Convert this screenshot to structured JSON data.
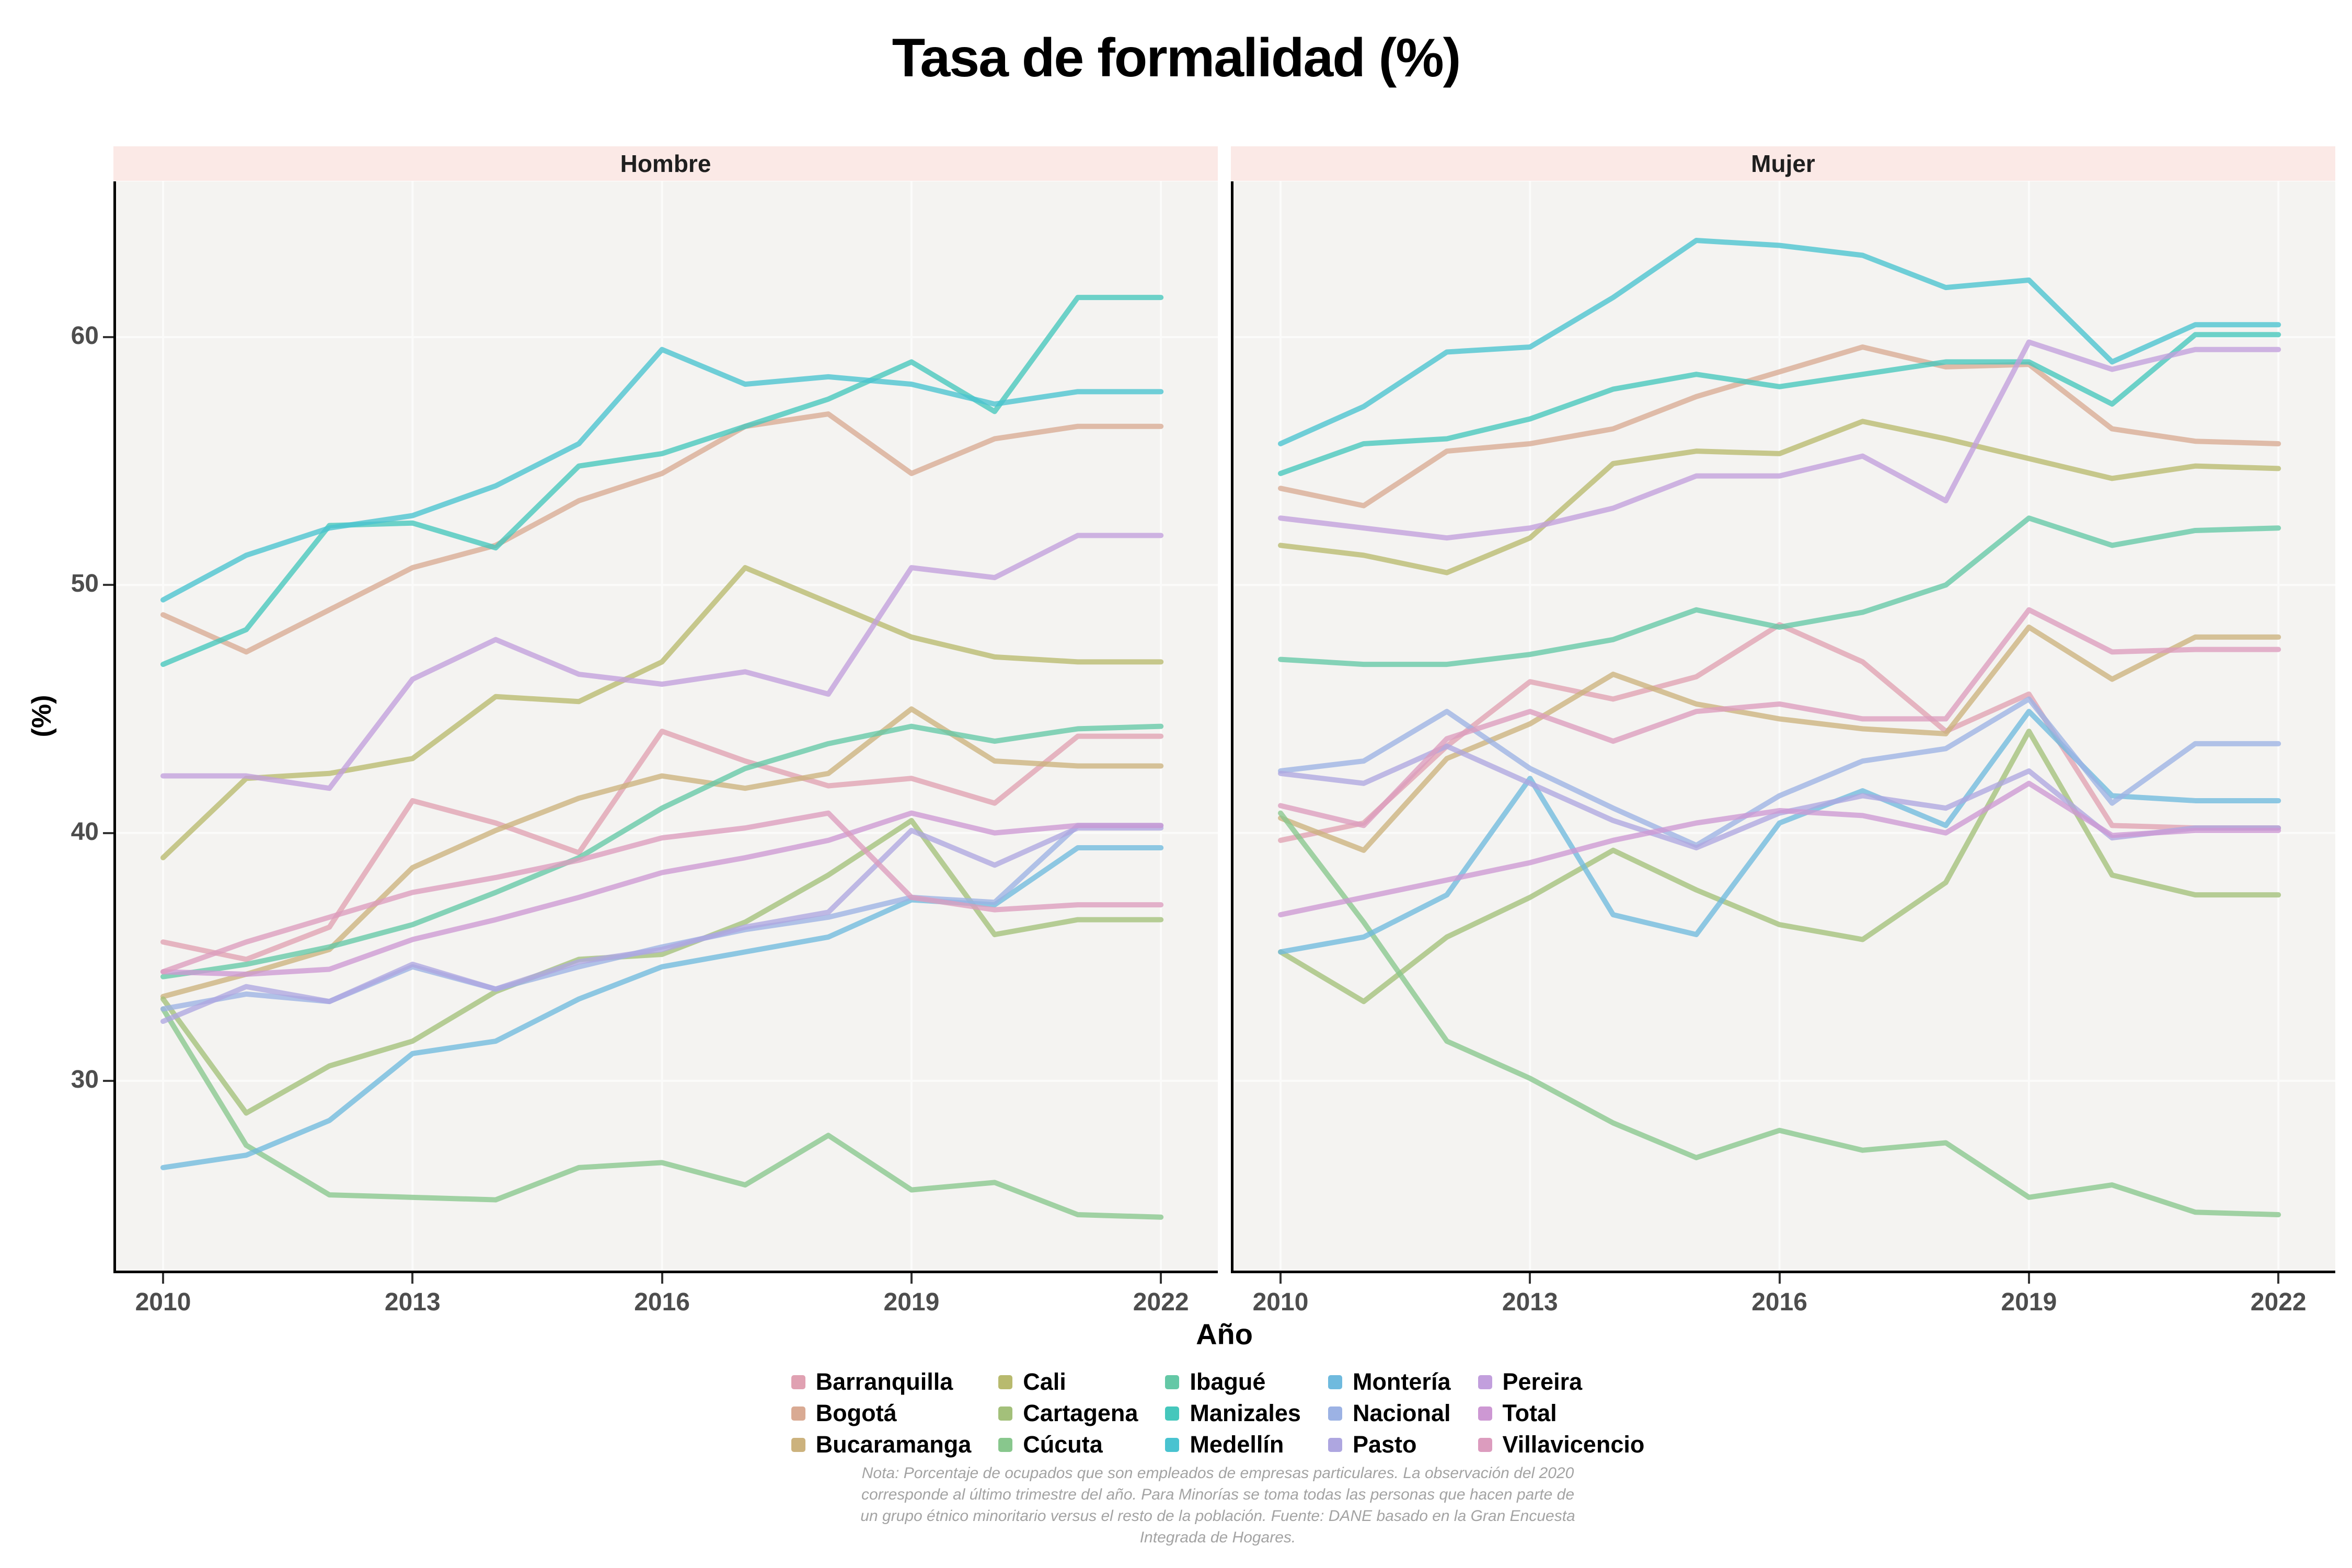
{
  "title": "Tasa de formalidad (%)",
  "axes": {
    "x_label": "Año",
    "y_label": "(%)",
    "y_ticks": [
      30,
      40,
      50,
      60
    ],
    "x_ticks": [
      2010,
      2013,
      2016,
      2019,
      2022
    ]
  },
  "caption_lines": [
    "Nota: Porcentaje de ocupados que son empleados de empresas particulares. La observación del 2020",
    "corresponde al último trimestre del año. Para Minorías se toma todas las personas que hacen parte de",
    "un grupo étnico minoritario versus el resto de la población. Fuente: DANE basado en la Gran Encuesta",
    "Integrada de Hogares."
  ],
  "colors": {
    "panel_bg": "#f4f3f1",
    "strip_bg": "#fbe9e6",
    "grid": "#fbfbfa",
    "axis_text": "#4d4d4d",
    "axis_line": "#000000",
    "caption": "#a3a3a3"
  },
  "chart_data": {
    "type": "line",
    "title": "Tasa de formalidad (%)",
    "xlabel": "Año",
    "ylabel": "(%)",
    "ylim": [
      22,
      66.5
    ],
    "grid": true,
    "legend_position": "bottom",
    "x": [
      2010,
      2011,
      2012,
      2013,
      2014,
      2015,
      2016,
      2017,
      2018,
      2019,
      2020,
      2021,
      2022
    ],
    "facets": [
      {
        "label": "Hombre",
        "series": [
          {
            "name": "Barranquilla",
            "color": "#e0a1b2",
            "values": [
              35.6,
              34.9,
              36.2,
              41.3,
              40.4,
              39.2,
              44.1,
              42.9,
              41.9,
              42.2,
              41.2,
              43.9,
              43.9
            ]
          },
          {
            "name": "Bogotá",
            "color": "#d9aa93",
            "values": [
              48.8,
              47.3,
              49.0,
              50.7,
              51.6,
              53.4,
              54.5,
              56.4,
              56.9,
              54.5,
              55.9,
              56.4,
              56.4
            ]
          },
          {
            "name": "Bucaramanga",
            "color": "#ccb27d",
            "values": [
              33.4,
              34.3,
              35.3,
              38.6,
              40.1,
              41.4,
              42.3,
              41.8,
              42.4,
              45.0,
              42.9,
              42.7,
              42.7
            ]
          },
          {
            "name": "Cali",
            "color": "#b8ba6e",
            "values": [
              39.0,
              42.2,
              42.4,
              43.0,
              45.5,
              45.3,
              46.9,
              50.7,
              49.3,
              47.9,
              47.1,
              46.9,
              46.9
            ]
          },
          {
            "name": "Cartagena",
            "color": "#a3c07a",
            "values": [
              33.3,
              28.7,
              30.6,
              31.6,
              33.6,
              34.9,
              35.1,
              36.4,
              38.3,
              40.5,
              35.9,
              36.5,
              36.5
            ]
          },
          {
            "name": "Cúcuta",
            "color": "#88c78d",
            "values": [
              32.9,
              27.4,
              25.4,
              25.3,
              25.2,
              26.5,
              26.7,
              25.8,
              27.8,
              25.6,
              25.9,
              24.6,
              24.5
            ]
          },
          {
            "name": "Ibagué",
            "color": "#64c8a6",
            "values": [
              34.2,
              34.7,
              35.4,
              36.3,
              37.6,
              39.0,
              41.0,
              42.6,
              43.6,
              44.3,
              43.7,
              44.2,
              44.3
            ]
          },
          {
            "name": "Manizales",
            "color": "#45c7bc",
            "values": [
              46.8,
              48.2,
              52.4,
              52.5,
              51.5,
              54.8,
              55.3,
              56.4,
              57.5,
              59.0,
              57.0,
              61.6,
              61.6
            ]
          },
          {
            "name": "Medellín",
            "color": "#49c3d0",
            "values": [
              49.4,
              51.2,
              52.3,
              52.8,
              54.0,
              55.7,
              59.5,
              58.1,
              58.4,
              58.1,
              57.3,
              57.8,
              57.8
            ]
          },
          {
            "name": "Montería",
            "color": "#6fbade",
            "values": [
              26.5,
              27.0,
              28.4,
              31.1,
              31.6,
              33.3,
              34.6,
              35.2,
              35.8,
              37.3,
              37.1,
              39.4,
              39.4
            ]
          },
          {
            "name": "Nacional",
            "color": "#9cb2e4",
            "values": [
              32.9,
              33.5,
              33.2,
              34.6,
              33.7,
              34.6,
              35.4,
              36.1,
              36.6,
              37.4,
              37.2,
              40.3,
              40.3
            ]
          },
          {
            "name": "Pasto",
            "color": "#aea6e0",
            "values": [
              32.4,
              33.8,
              33.2,
              34.7,
              33.7,
              34.8,
              35.3,
              36.2,
              36.8,
              40.1,
              38.7,
              40.2,
              40.2
            ]
          },
          {
            "name": "Pereira",
            "color": "#c29fdd",
            "values": [
              42.3,
              42.3,
              41.8,
              46.2,
              47.8,
              46.4,
              46.0,
              46.5,
              45.6,
              50.7,
              50.3,
              52.0,
              52.0
            ]
          },
          {
            "name": "Total",
            "color": "#cd98d3",
            "values": [
              34.4,
              34.3,
              34.5,
              35.7,
              36.5,
              37.4,
              38.4,
              39.0,
              39.7,
              40.8,
              40.0,
              40.3,
              40.3
            ]
          },
          {
            "name": "Villavicencio",
            "color": "#dc9cbe",
            "values": [
              34.4,
              35.6,
              36.6,
              37.6,
              38.2,
              38.9,
              39.8,
              40.2,
              40.8,
              37.4,
              36.9,
              37.1,
              37.1
            ]
          }
        ]
      },
      {
        "label": "Mujer",
        "series": [
          {
            "name": "Barranquilla",
            "color": "#e0a1b2",
            "values": [
              39.7,
              40.4,
              43.5,
              46.1,
              45.4,
              46.3,
              48.4,
              46.9,
              44.1,
              45.6,
              40.3,
              40.2,
              40.2
            ]
          },
          {
            "name": "Bogotá",
            "color": "#d9aa93",
            "values": [
              53.9,
              53.2,
              55.4,
              55.7,
              56.3,
              57.6,
              58.6,
              59.6,
              58.8,
              58.9,
              56.3,
              55.8,
              55.7
            ]
          },
          {
            "name": "Bucaramanga",
            "color": "#ccb27d",
            "values": [
              40.6,
              39.3,
              43.0,
              44.4,
              46.4,
              45.2,
              44.6,
              44.2,
              44.0,
              48.3,
              46.2,
              47.9,
              47.9
            ]
          },
          {
            "name": "Cali",
            "color": "#b8ba6e",
            "values": [
              51.6,
              51.2,
              50.5,
              51.9,
              54.9,
              55.4,
              55.3,
              56.6,
              55.9,
              55.1,
              54.3,
              54.8,
              54.7
            ]
          },
          {
            "name": "Cartagena",
            "color": "#a3c07a",
            "values": [
              35.2,
              33.2,
              35.8,
              37.4,
              39.3,
              37.7,
              36.3,
              35.7,
              38.0,
              44.1,
              38.3,
              37.5,
              37.5
            ]
          },
          {
            "name": "Cúcuta",
            "color": "#88c78d",
            "values": [
              40.8,
              36.4,
              31.6,
              30.1,
              28.3,
              26.9,
              28.0,
              27.2,
              27.5,
              25.3,
              25.8,
              24.7,
              24.6
            ]
          },
          {
            "name": "Ibagué",
            "color": "#64c8a6",
            "values": [
              47.0,
              46.8,
              46.8,
              47.2,
              47.8,
              49.0,
              48.3,
              48.9,
              50.0,
              52.7,
              51.6,
              52.2,
              52.3
            ]
          },
          {
            "name": "Manizales",
            "color": "#45c7bc",
            "values": [
              54.5,
              55.7,
              55.9,
              56.7,
              57.9,
              58.5,
              58.0,
              58.5,
              59.0,
              59.0,
              57.3,
              60.1,
              60.1
            ]
          },
          {
            "name": "Medellín",
            "color": "#49c3d0",
            "values": [
              55.7,
              57.2,
              59.4,
              59.6,
              61.6,
              63.9,
              63.7,
              63.3,
              62.0,
              62.3,
              59.0,
              60.5,
              60.5
            ]
          },
          {
            "name": "Montería",
            "color": "#6fbade",
            "values": [
              35.2,
              35.8,
              37.5,
              42.2,
              36.7,
              35.9,
              40.4,
              41.7,
              40.3,
              44.9,
              41.5,
              41.3,
              41.3
            ]
          },
          {
            "name": "Nacional",
            "color": "#9cb2e4",
            "values": [
              42.5,
              42.9,
              44.9,
              42.6,
              41.0,
              39.5,
              41.5,
              42.9,
              43.4,
              45.4,
              41.2,
              43.6,
              43.6
            ]
          },
          {
            "name": "Pasto",
            "color": "#aea6e0",
            "values": [
              42.4,
              42.0,
              43.5,
              42.0,
              40.5,
              39.4,
              40.8,
              41.5,
              41.0,
              42.5,
              39.8,
              40.2,
              40.2
            ]
          },
          {
            "name": "Pereira",
            "color": "#c29fdd",
            "values": [
              52.7,
              52.3,
              51.9,
              52.3,
              53.1,
              54.4,
              54.4,
              55.2,
              53.4,
              59.8,
              58.7,
              59.5,
              59.5
            ]
          },
          {
            "name": "Total",
            "color": "#cd98d3",
            "values": [
              36.7,
              37.4,
              38.1,
              38.8,
              39.7,
              40.4,
              40.9,
              40.7,
              40.0,
              42.0,
              39.9,
              40.1,
              40.1
            ]
          },
          {
            "name": "Villavicencio",
            "color": "#dc9cbe",
            "values": [
              41.1,
              40.3,
              43.8,
              44.9,
              43.7,
              44.9,
              45.2,
              44.6,
              44.6,
              49.0,
              47.3,
              47.4,
              47.4
            ]
          }
        ]
      }
    ]
  }
}
